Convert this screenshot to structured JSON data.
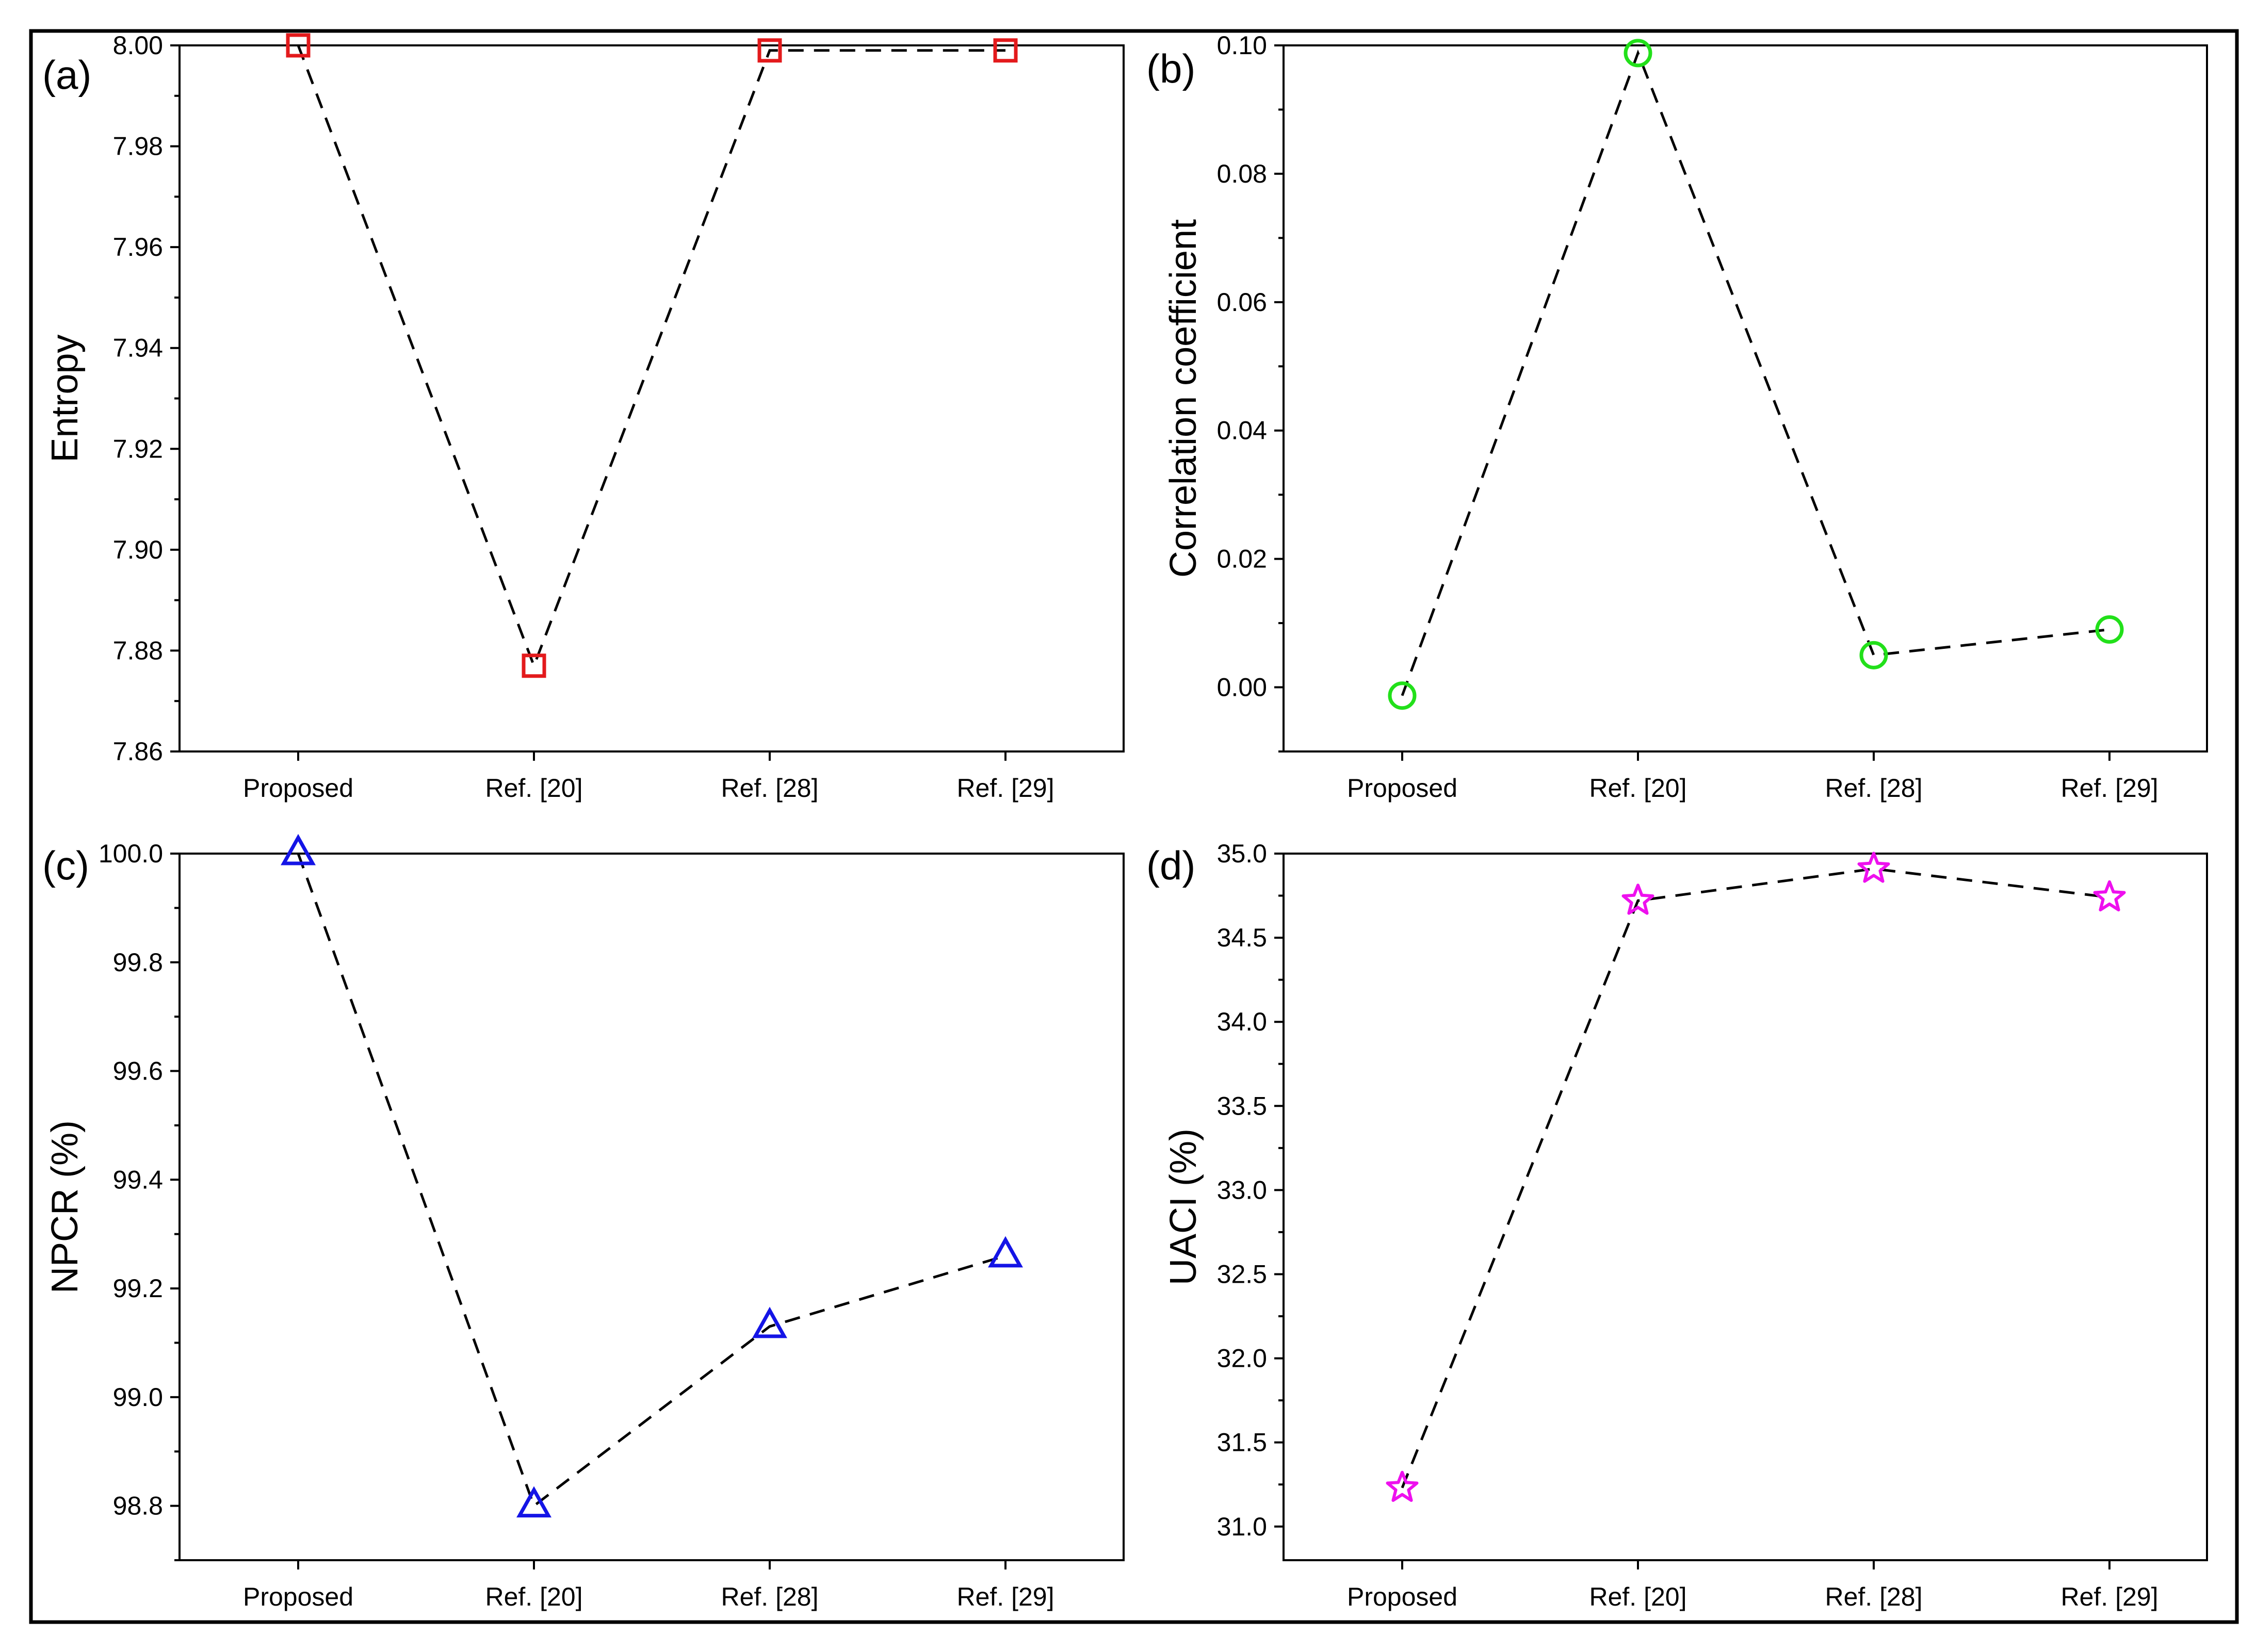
{
  "chart_data": [
    {
      "type": "line",
      "panel_label": "(a)",
      "title": "",
      "xlabel": "",
      "ylabel": "Entropy",
      "categories": [
        "Proposed",
        "Ref. [20]",
        "Ref. [28]",
        "Ref. [29]"
      ],
      "values": [
        8.0,
        7.877,
        7.999,
        7.999
      ],
      "ylim": [
        7.86,
        8.0
      ],
      "yticks": [
        "7.86",
        "7.88",
        "7.90",
        "7.92",
        "7.94",
        "7.96",
        "7.98",
        "8.00"
      ],
      "marker": "square",
      "marker_color": "#e31a1c",
      "line_style": "dashed",
      "line_color": "#000000",
      "grid": false
    },
    {
      "type": "line",
      "panel_label": "(b)",
      "title": "",
      "xlabel": "",
      "ylabel": "Correlation coefficient",
      "categories": [
        "Proposed",
        "Ref. [20]",
        "Ref. [28]",
        "Ref. [29]"
      ],
      "values": [
        -0.0013,
        0.0988,
        0.005,
        0.009
      ],
      "ylim": [
        -0.01,
        0.1
      ],
      "yticks": [
        "0.00",
        "0.02",
        "0.04",
        "0.06",
        "0.08",
        "0.10"
      ],
      "marker": "circle",
      "marker_color": "#22e01a",
      "line_style": "dashed",
      "line_color": "#000000",
      "grid": false
    },
    {
      "type": "line",
      "panel_label": "(c)",
      "title": "",
      "xlabel": "",
      "ylabel": "NPCR (%)",
      "categories": [
        "Proposed",
        "Ref. [20]",
        "Ref. [28]",
        "Ref. [29]"
      ],
      "values": [
        100.0,
        98.8,
        99.13,
        99.26
      ],
      "ylim": [
        98.7,
        100.0
      ],
      "yticks": [
        "98.8",
        "99.0",
        "99.2",
        "99.4",
        "99.6",
        "99.8",
        "100.0"
      ],
      "marker": "triangle",
      "marker_color": "#1414e6",
      "line_style": "dashed",
      "line_color": "#000000",
      "grid": false
    },
    {
      "type": "line",
      "panel_label": "(d)",
      "title": "",
      "xlabel": "",
      "ylabel": "UACI (%)",
      "categories": [
        "Proposed",
        "Ref. [20]",
        "Ref. [28]",
        "Ref. [29]"
      ],
      "values": [
        31.23,
        34.72,
        34.91,
        34.74
      ],
      "ylim": [
        30.8,
        35.0
      ],
      "yticks": [
        "31.0",
        "31.5",
        "32.0",
        "32.5",
        "33.0",
        "33.5",
        "34.0",
        "34.5",
        "35.0"
      ],
      "marker": "star",
      "marker_color": "#ee10ee",
      "line_style": "dashed",
      "line_color": "#000000",
      "grid": false
    }
  ]
}
